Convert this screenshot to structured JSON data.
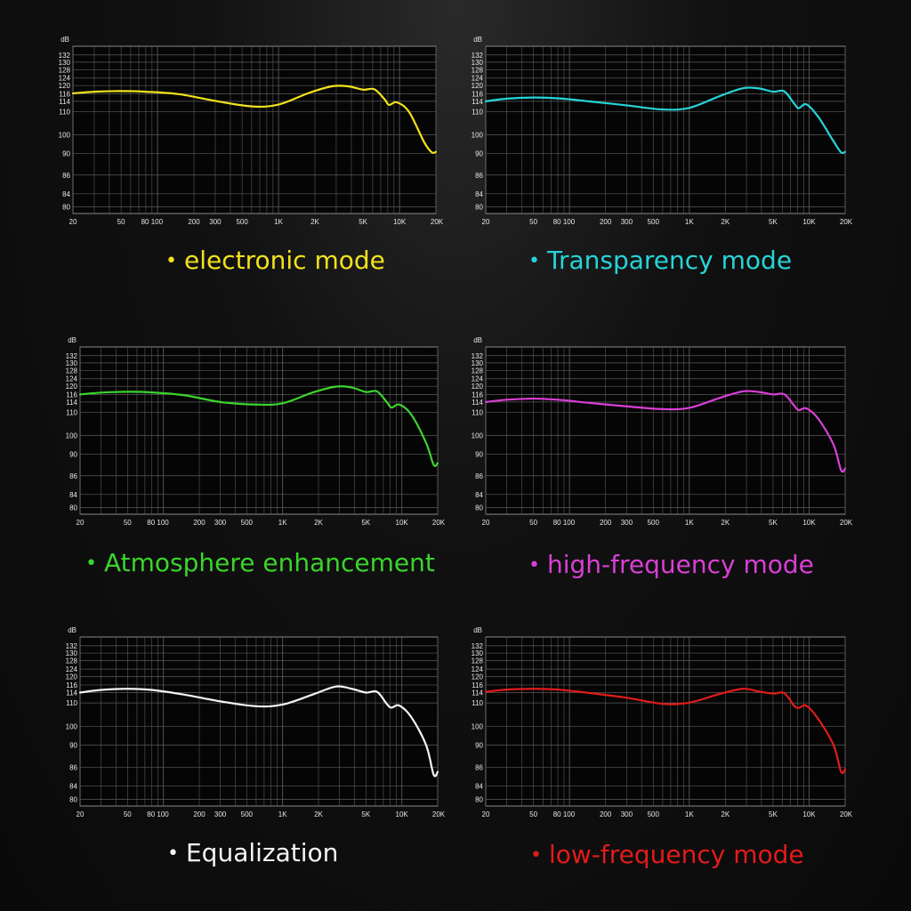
{
  "chart_data": [
    {
      "type": "line",
      "title": "electronic mode",
      "color": "#f2e21b",
      "xlabel": "",
      "ylabel": "dB",
      "x_scale": "log",
      "xlim": [
        20,
        20000
      ],
      "y_ticks": [
        80,
        84,
        86,
        90,
        100,
        110,
        114,
        116,
        120,
        124,
        128,
        130,
        132
      ],
      "x_tick_labels": [
        "20",
        "50",
        "80 100",
        "200",
        "300",
        "500",
        "1K",
        "2K",
        "5K",
        "10K",
        "20K"
      ],
      "grid": true,
      "x": [
        20,
        30,
        50,
        80,
        150,
        300,
        600,
        1000,
        1800,
        2800,
        3800,
        5000,
        6200,
        7500,
        8200,
        9500,
        12000,
        16000,
        18500,
        20000
      ],
      "y": [
        116.2,
        117.0,
        117.3,
        117.0,
        115.9,
        114.1,
        112.0,
        112.7,
        116.5,
        119.7,
        119.6,
        118.0,
        118.2,
        114.6,
        112.6,
        113.6,
        109.8,
        96.0,
        90.5,
        90.8
      ]
    },
    {
      "type": "line",
      "title": "Transparency mode",
      "color": "#27d4d8",
      "xlabel": "",
      "ylabel": "dB",
      "x_scale": "log",
      "xlim": [
        20,
        20000
      ],
      "y_ticks": [
        80,
        84,
        86,
        90,
        100,
        110,
        114,
        116,
        120,
        124,
        128,
        130,
        132
      ],
      "x_tick_labels": [
        "20",
        "50",
        "80 100",
        "200",
        "300",
        "500",
        "1K",
        "2K",
        "5K",
        "10K",
        "20K"
      ],
      "grid": true,
      "x": [
        20,
        30,
        50,
        80,
        150,
        300,
        600,
        1000,
        1800,
        2800,
        3800,
        5000,
        6200,
        7500,
        8200,
        9500,
        12000,
        16000,
        18500,
        20000
      ],
      "y": [
        114.0,
        114.7,
        115.0,
        114.8,
        113.9,
        112.4,
        110.8,
        111.4,
        115.4,
        118.7,
        118.6,
        117.0,
        117.2,
        113.1,
        111.3,
        112.8,
        107.5,
        96.5,
        90.5,
        90.8
      ]
    },
    {
      "type": "line",
      "title": "Atmosphere enhancement",
      "color": "#3bd42c",
      "xlabel": "",
      "ylabel": "dB",
      "x_scale": "log",
      "xlim": [
        20,
        20000
      ],
      "y_ticks": [
        80,
        84,
        86,
        90,
        100,
        110,
        114,
        116,
        120,
        124,
        128,
        130,
        132
      ],
      "x_tick_labels": [
        "20",
        "50",
        "80 100",
        "200",
        "300",
        "500",
        "1K",
        "2K",
        "5K",
        "10K",
        "20K"
      ],
      "grid": true,
      "x": [
        20,
        30,
        50,
        80,
        150,
        300,
        600,
        1000,
        1800,
        2800,
        3800,
        5000,
        6200,
        7500,
        8200,
        9500,
        12000,
        16000,
        18500,
        20000
      ],
      "y": [
        116.0,
        116.9,
        117.3,
        117.0,
        115.8,
        114.0,
        113.0,
        113.5,
        117.0,
        119.8,
        119.4,
        117.2,
        117.5,
        113.9,
        111.8,
        113.0,
        109.0,
        96.0,
        88.0,
        88.3
      ]
    },
    {
      "type": "line",
      "title": "high-frequency mode",
      "color": "#d93fd6",
      "xlabel": "",
      "ylabel": "dB",
      "x_scale": "log",
      "xlim": [
        20,
        20000
      ],
      "y_ticks": [
        80,
        84,
        86,
        90,
        100,
        110,
        114,
        116,
        120,
        124,
        128,
        130,
        132
      ],
      "x_tick_labels": [
        "20",
        "50",
        "80 100",
        "200",
        "300",
        "500",
        "1K",
        "2K",
        "5K",
        "10K",
        "20K"
      ],
      "grid": true,
      "x": [
        20,
        30,
        50,
        80,
        150,
        300,
        600,
        1000,
        1800,
        2800,
        3800,
        5000,
        6200,
        7500,
        8200,
        9500,
        12000,
        16000,
        18500,
        20000
      ],
      "y": [
        114.0,
        114.6,
        114.9,
        114.6,
        113.6,
        112.3,
        111.2,
        111.7,
        115.1,
        117.5,
        117.2,
        116.0,
        116.1,
        112.6,
        110.8,
        111.5,
        107.0,
        95.0,
        87.0,
        87.3
      ]
    },
    {
      "type": "line",
      "title": "Equalization",
      "color": "#f4f4f4",
      "xlabel": "",
      "ylabel": "dB",
      "x_scale": "log",
      "xlim": [
        20,
        20000
      ],
      "y_ticks": [
        80,
        84,
        86,
        90,
        100,
        110,
        114,
        116,
        120,
        124,
        128,
        130,
        132
      ],
      "x_tick_labels": [
        "20",
        "50",
        "80 100",
        "200",
        "300",
        "500",
        "1K",
        "2K",
        "5K",
        "10K",
        "20K"
      ],
      "grid": true,
      "x": [
        20,
        30,
        50,
        80,
        150,
        300,
        600,
        1000,
        1800,
        2800,
        3800,
        5000,
        6200,
        7500,
        8200,
        9500,
        12000,
        16000,
        18500,
        20000
      ],
      "y": [
        114.0,
        114.7,
        115.0,
        114.7,
        113.2,
        110.6,
        108.6,
        109.3,
        113.3,
        115.6,
        115.0,
        114.0,
        114.2,
        109.5,
        108.0,
        108.9,
        104.0,
        90.0,
        85.2,
        85.5
      ]
    },
    {
      "type": "line",
      "title": "low-frequency mode",
      "color": "#e21b1b",
      "xlabel": "",
      "ylabel": "dB",
      "x_scale": "log",
      "xlim": [
        20,
        20000
      ],
      "y_ticks": [
        80,
        84,
        86,
        90,
        100,
        110,
        114,
        116,
        120,
        124,
        128,
        130,
        132
      ],
      "x_tick_labels": [
        "20",
        "50",
        "80 100",
        "200",
        "300",
        "500",
        "1K",
        "2K",
        "5K",
        "10K",
        "20K"
      ],
      "grid": true,
      "x": [
        20,
        30,
        50,
        80,
        150,
        300,
        600,
        1000,
        1800,
        2800,
        3800,
        5000,
        6200,
        7500,
        8200,
        9500,
        12000,
        16000,
        18500,
        20000
      ],
      "y": [
        114.2,
        114.8,
        115.0,
        114.8,
        113.8,
        112.0,
        109.6,
        110.1,
        113.5,
        115.0,
        114.3,
        113.6,
        113.8,
        108.8,
        107.9,
        108.8,
        103.0,
        90.0,
        85.5,
        85.8
      ]
    }
  ]
}
